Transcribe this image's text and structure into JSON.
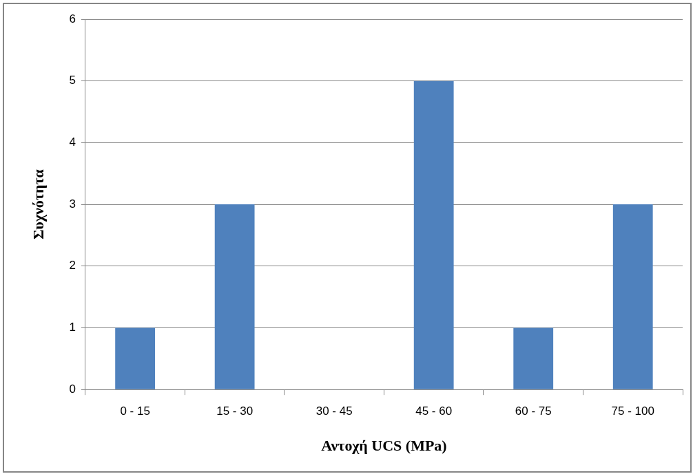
{
  "chart_data": {
    "type": "bar",
    "xlabel": "Αντοχή UCS (MPa)",
    "ylabel": "Συχνότητα",
    "categories": [
      "0 - 15",
      "15 - 30",
      "30 - 45",
      "45 - 60",
      "60 - 75",
      "75 - 100"
    ],
    "values": [
      1,
      3,
      0,
      5,
      1,
      3
    ],
    "color": "#4f81bd",
    "ylim": [
      0,
      6
    ],
    "yticks": [
      0,
      1,
      2,
      3,
      4,
      5,
      6
    ],
    "grid": "y",
    "legend": false
  }
}
